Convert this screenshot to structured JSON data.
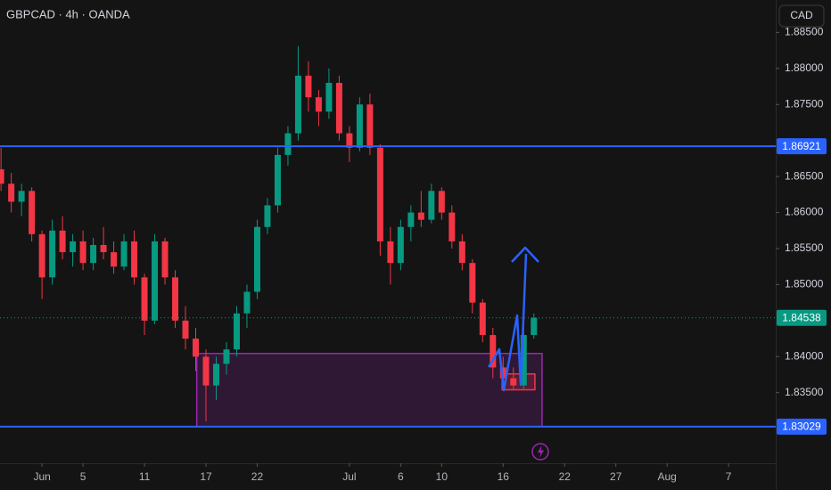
{
  "chart_data": {
    "type": "candlestick",
    "title": "GBPCAD · 4h · OANDA",
    "currency_button": "CAD",
    "up_color": "#089981",
    "down_color": "#f23645",
    "x": [
      -4,
      -3,
      -2,
      -1,
      0,
      1,
      2,
      3,
      4,
      5,
      6,
      7,
      8,
      9,
      10,
      11,
      12,
      13,
      14,
      15,
      16,
      17,
      18,
      19,
      20,
      21,
      22,
      23,
      24,
      25,
      26,
      27,
      28,
      29,
      30,
      31,
      32,
      33,
      34,
      35,
      36,
      37,
      38,
      39,
      40,
      41,
      42,
      43,
      44,
      45,
      46,
      47,
      48
    ],
    "open": [
      1.866,
      1.864,
      1.8615,
      1.863,
      1.857,
      1.851,
      1.8575,
      1.8545,
      1.856,
      1.853,
      1.8555,
      1.8545,
      1.8525,
      1.856,
      1.851,
      1.845,
      1.856,
      1.851,
      1.845,
      1.8425,
      1.84,
      1.836,
      1.839,
      1.841,
      1.846,
      1.849,
      1.858,
      1.861,
      1.868,
      1.871,
      1.879,
      1.876,
      1.874,
      1.878,
      1.871,
      1.869,
      1.875,
      1.869,
      1.856,
      1.853,
      1.858,
      1.86,
      1.859,
      1.863,
      1.86,
      1.856,
      1.853,
      1.8475,
      1.843,
      1.8385,
      1.837,
      1.836,
      1.843
    ],
    "high": [
      1.869,
      1.8655,
      1.864,
      1.8635,
      1.8575,
      1.859,
      1.8595,
      1.857,
      1.8575,
      1.8565,
      1.858,
      1.856,
      1.857,
      1.8575,
      1.8515,
      1.857,
      1.8565,
      1.852,
      1.847,
      1.844,
      1.841,
      1.84,
      1.842,
      1.847,
      1.85,
      1.859,
      1.862,
      1.869,
      1.872,
      1.8831,
      1.881,
      1.877,
      1.88,
      1.879,
      1.872,
      1.876,
      1.8765,
      1.8695,
      1.858,
      1.859,
      1.861,
      1.863,
      1.864,
      1.8635,
      1.861,
      1.857,
      1.8535,
      1.848,
      1.844,
      1.84,
      1.8385,
      1.844,
      1.846
    ],
    "low": [
      1.863,
      1.86,
      1.8595,
      1.856,
      1.848,
      1.85,
      1.8535,
      1.8525,
      1.852,
      1.852,
      1.8535,
      1.8515,
      1.852,
      1.85,
      1.843,
      1.8445,
      1.85,
      1.844,
      1.841,
      1.838,
      1.831,
      1.834,
      1.8375,
      1.84,
      1.844,
      1.848,
      1.857,
      1.86,
      1.8665,
      1.87,
      1.874,
      1.872,
      1.873,
      1.87,
      1.867,
      1.8685,
      1.868,
      1.854,
      1.85,
      1.852,
      1.856,
      1.858,
      1.8585,
      1.859,
      1.855,
      1.852,
      1.846,
      1.842,
      1.837,
      1.8355,
      1.8355,
      1.8355,
      1.8425
    ],
    "close": [
      1.864,
      1.8615,
      1.863,
      1.857,
      1.851,
      1.8575,
      1.8545,
      1.856,
      1.853,
      1.8555,
      1.8545,
      1.8525,
      1.856,
      1.851,
      1.845,
      1.856,
      1.851,
      1.845,
      1.8425,
      1.84,
      1.836,
      1.839,
      1.841,
      1.846,
      1.849,
      1.858,
      1.861,
      1.868,
      1.871,
      1.879,
      1.876,
      1.874,
      1.878,
      1.871,
      1.869,
      1.875,
      1.869,
      1.856,
      1.853,
      1.858,
      1.86,
      1.859,
      1.863,
      1.86,
      1.856,
      1.853,
      1.8475,
      1.843,
      1.8385,
      1.837,
      1.836,
      1.843,
      1.8454
    ],
    "xlim": [
      -4.1,
      71.6
    ],
    "xticks": [
      {
        "value": 0,
        "label": "Jun"
      },
      {
        "value": 4,
        "label": "5"
      },
      {
        "value": 10,
        "label": "11"
      },
      {
        "value": 16,
        "label": "17"
      },
      {
        "value": 21,
        "label": "22"
      },
      {
        "value": 30,
        "label": "Jul"
      },
      {
        "value": 35,
        "label": "6"
      },
      {
        "value": 39,
        "label": "10"
      },
      {
        "value": 45,
        "label": "16"
      },
      {
        "value": 51,
        "label": "22"
      },
      {
        "value": 56,
        "label": "27"
      },
      {
        "value": 61,
        "label": "Aug"
      },
      {
        "value": 67,
        "label": "7"
      }
    ],
    "ylim": [
      1.8252,
      1.8895
    ],
    "yticks": [
      {
        "value": 1.835,
        "label": "1.83500"
      },
      {
        "value": 1.84,
        "label": "1.84000"
      },
      {
        "value": 1.85,
        "label": "1.85000"
      },
      {
        "value": 1.855,
        "label": "1.85500"
      },
      {
        "value": 1.86,
        "label": "1.86000"
      },
      {
        "value": 1.865,
        "label": "1.86500"
      },
      {
        "value": 1.875,
        "label": "1.87500"
      },
      {
        "value": 1.88,
        "label": "1.88000"
      },
      {
        "value": 1.885,
        "label": "1.88500"
      }
    ],
    "levels": [
      1.86921,
      1.83029
    ],
    "level_color": "#2962ff",
    "current_price": 1.84538,
    "zones": [
      {
        "x": [
          15.1,
          48.8
        ],
        "y": [
          1.83029,
          1.84044
        ],
        "color": "#9c27b0"
      },
      {
        "x": [
          44.9,
          48.1
        ],
        "y": [
          1.8354,
          1.8376
        ],
        "color": "#f23645"
      }
    ]
  }
}
